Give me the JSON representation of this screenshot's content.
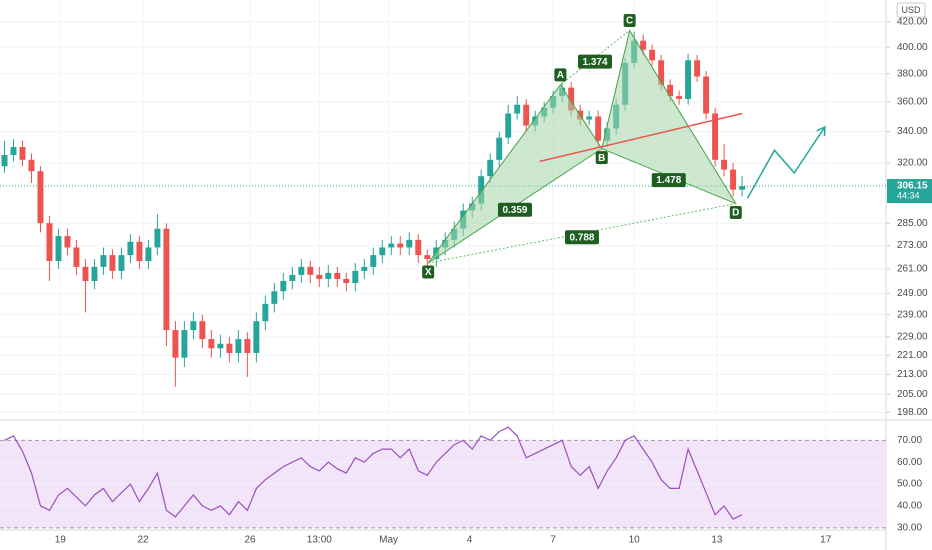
{
  "chart_data": {
    "type": "candlestick",
    "currency": "USD",
    "last_price": 306.15,
    "countdown": "44:34",
    "log_scale": true,
    "grid": true,
    "up_color": "#26a69a",
    "down_color": "#ef5350",
    "xlim": [
      -0.5,
      98
    ],
    "ylim": [
      197,
      438
    ],
    "xticks": [
      {
        "value": 6.2,
        "label": "19"
      },
      {
        "value": 15.4,
        "label": "22"
      },
      {
        "value": 27.3,
        "label": "26"
      },
      {
        "value": 35,
        "label": "13:00"
      },
      {
        "value": 42.7,
        "label": "May"
      },
      {
        "value": 51.7,
        "label": "4"
      },
      {
        "value": 61,
        "label": "7"
      },
      {
        "value": 70,
        "label": "10"
      },
      {
        "value": 79.2,
        "label": "13"
      },
      {
        "value": 91.3,
        "label": "17"
      }
    ],
    "yticks": [
      {
        "value": 420,
        "label": "420.00"
      },
      {
        "value": 400,
        "label": "400.00"
      },
      {
        "value": 380,
        "label": "380.00"
      },
      {
        "value": 360,
        "label": "360.00"
      },
      {
        "value": 340,
        "label": "340.00"
      },
      {
        "value": 320,
        "label": "320.00"
      },
      {
        "value": 285,
        "label": "285.00"
      },
      {
        "value": 273,
        "label": "273.00"
      },
      {
        "value": 261,
        "label": "261.00"
      },
      {
        "value": 249,
        "label": "249.00"
      },
      {
        "value": 239,
        "label": "239.00"
      },
      {
        "value": 229,
        "label": "229.00"
      },
      {
        "value": 221,
        "label": "221.00"
      },
      {
        "value": 213,
        "label": "213.00"
      },
      {
        "value": 205,
        "label": "205.00"
      },
      {
        "value": 198,
        "label": "198.00"
      }
    ],
    "candles": [
      [
        318,
        334,
        314,
        325
      ],
      [
        325,
        335,
        321,
        330
      ],
      [
        330,
        334,
        318,
        322
      ],
      [
        322,
        326,
        308,
        315
      ],
      [
        315,
        318,
        280,
        285
      ],
      [
        285,
        289,
        255,
        265
      ],
      [
        265,
        282,
        261,
        278
      ],
      [
        278,
        282,
        268,
        272
      ],
      [
        272,
        276,
        258,
        262
      ],
      [
        262,
        266,
        240,
        255
      ],
      [
        255,
        266,
        251,
        262
      ],
      [
        262,
        272,
        258,
        268
      ],
      [
        268,
        271,
        256,
        260
      ],
      [
        260,
        272,
        256,
        268
      ],
      [
        268,
        279,
        264,
        275
      ],
      [
        275,
        278,
        261,
        265
      ],
      [
        265,
        276,
        261,
        272
      ],
      [
        272,
        290,
        268,
        282
      ],
      [
        282,
        285,
        225,
        232
      ],
      [
        232,
        236,
        208,
        220
      ],
      [
        220,
        236,
        216,
        232
      ],
      [
        232,
        240,
        228,
        236
      ],
      [
        236,
        239,
        224,
        228
      ],
      [
        228,
        232,
        220,
        224
      ],
      [
        224,
        230,
        220,
        226
      ],
      [
        226,
        229,
        218,
        222
      ],
      [
        222,
        232,
        218,
        228
      ],
      [
        228,
        231,
        212,
        222
      ],
      [
        222,
        240,
        218,
        236
      ],
      [
        236,
        248,
        232,
        244
      ],
      [
        244,
        254,
        240,
        250
      ],
      [
        250,
        259,
        246,
        255
      ],
      [
        255,
        262,
        251,
        258
      ],
      [
        258,
        266,
        254,
        262
      ],
      [
        262,
        265,
        254,
        258
      ],
      [
        258,
        262,
        252,
        256
      ],
      [
        256,
        263,
        252,
        259
      ],
      [
        259,
        262,
        252,
        256
      ],
      [
        256,
        259,
        250,
        254
      ],
      [
        254,
        264,
        250,
        260
      ],
      [
        260,
        266,
        256,
        262
      ],
      [
        262,
        272,
        258,
        268
      ],
      [
        268,
        276,
        264,
        272
      ],
      [
        272,
        278,
        268,
        274
      ],
      [
        274,
        278,
        268,
        272
      ],
      [
        272,
        280,
        268,
        276
      ],
      [
        276,
        279,
        264,
        268
      ],
      [
        268,
        271,
        262,
        266
      ],
      [
        266,
        276,
        262,
        272
      ],
      [
        272,
        280,
        268,
        276
      ],
      [
        276,
        286,
        272,
        282
      ],
      [
        282,
        296,
        278,
        292
      ],
      [
        292,
        300,
        288,
        296
      ],
      [
        296,
        316,
        292,
        312
      ],
      [
        312,
        326,
        308,
        322
      ],
      [
        322,
        340,
        318,
        336
      ],
      [
        336,
        358,
        332,
        352
      ],
      [
        352,
        364,
        348,
        358
      ],
      [
        358,
        362,
        340,
        344
      ],
      [
        344,
        354,
        340,
        350
      ],
      [
        350,
        360,
        346,
        356
      ],
      [
        356,
        368,
        352,
        364
      ],
      [
        364,
        374,
        360,
        370
      ],
      [
        370,
        374,
        350,
        354
      ],
      [
        354,
        358,
        344,
        348
      ],
      [
        348,
        354,
        344,
        350
      ],
      [
        350,
        354,
        330,
        334
      ],
      [
        334,
        346,
        330,
        342
      ],
      [
        342,
        362,
        338,
        358
      ],
      [
        358,
        392,
        354,
        388
      ],
      [
        388,
        412,
        384,
        405
      ],
      [
        405,
        410,
        394,
        398
      ],
      [
        398,
        402,
        386,
        390
      ],
      [
        390,
        394,
        368,
        372
      ],
      [
        372,
        376,
        360,
        364
      ],
      [
        364,
        368,
        358,
        362
      ],
      [
        362,
        395,
        358,
        390
      ],
      [
        390,
        394,
        374,
        378
      ],
      [
        378,
        382,
        348,
        352
      ],
      [
        352,
        356,
        318,
        322
      ],
      [
        322,
        332,
        312,
        316
      ],
      [
        316,
        320,
        300,
        304
      ],
      [
        304,
        312,
        300,
        306
      ]
    ],
    "pattern": {
      "color": "#1e5e20",
      "fill": "#a5d6a7",
      "points": [
        {
          "label": "X",
          "x": 47.1,
          "y": 264
        },
        {
          "label": "A",
          "x": 61.8,
          "y": 372
        },
        {
          "label": "B",
          "x": 66.4,
          "y": 329
        },
        {
          "label": "C",
          "x": 69.5,
          "y": 413
        },
        {
          "label": "D",
          "x": 81.3,
          "y": 296
        }
      ],
      "ratios": [
        0.359,
        1.374,
        1.478,
        0.788
      ]
    },
    "trend_line": {
      "color": "#ef5350",
      "points": [
        [
          59.5,
          321
        ],
        [
          82,
          352
        ]
      ]
    },
    "projection": {
      "color": "#26a69a",
      "points": [
        [
          82.6,
          299
        ],
        [
          85.6,
          328
        ],
        [
          87.8,
          314
        ],
        [
          91.2,
          343
        ]
      ]
    },
    "rsi": {
      "color": "#9c4fbf",
      "band_color": "#f3e5f9",
      "ylim": [
        29,
        77
      ],
      "yticks": [
        {
          "value": 70,
          "label": "70.00"
        },
        {
          "value": 60,
          "label": "60.00"
        },
        {
          "value": 50,
          "label": "50.00"
        },
        {
          "value": 40,
          "label": "40.00"
        },
        {
          "value": 30,
          "label": "30.00"
        }
      ],
      "values": [
        70,
        72,
        65,
        55,
        40,
        38,
        45,
        48,
        44,
        40,
        45,
        48,
        42,
        46,
        50,
        42,
        48,
        55,
        38,
        35,
        40,
        45,
        40,
        38,
        40,
        36,
        42,
        38,
        48,
        52,
        55,
        58,
        60,
        62,
        58,
        56,
        60,
        57,
        55,
        62,
        60,
        64,
        66,
        66,
        62,
        66,
        56,
        54,
        60,
        64,
        68,
        70,
        66,
        72,
        70,
        74,
        76,
        72,
        62,
        64,
        66,
        68,
        70,
        58,
        54,
        58,
        48,
        56,
        62,
        70,
        72,
        66,
        60,
        52,
        48,
        48,
        66,
        56,
        46,
        36,
        40,
        34,
        36
      ]
    }
  }
}
